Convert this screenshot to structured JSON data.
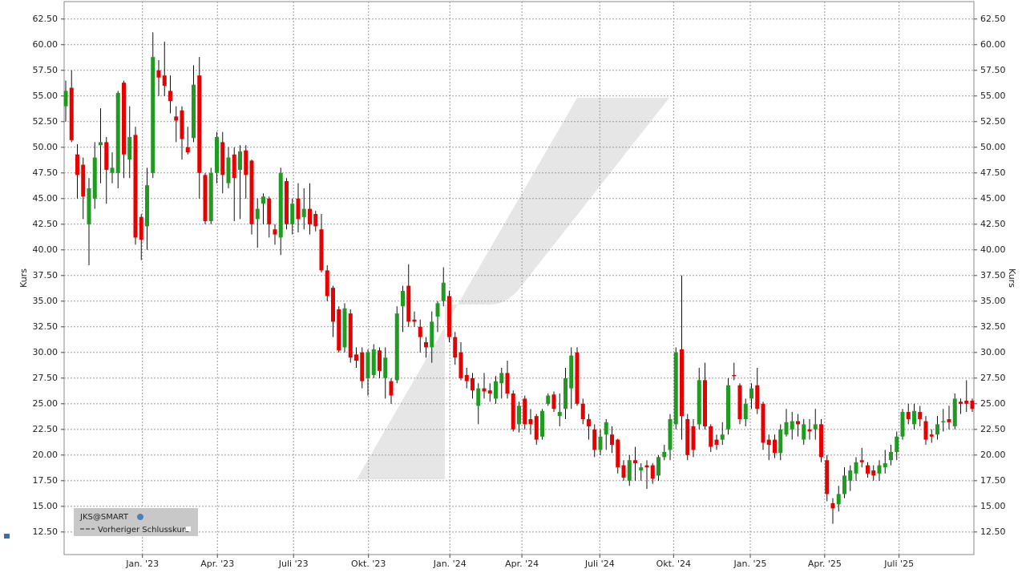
{
  "chart_data": {
    "type": "candlestick",
    "y_label": "Kurs",
    "legend": {
      "symbol": "JKS@SMART",
      "reference": "Vorheriger Schlusskurs"
    },
    "up_color": "#1f9c1f",
    "down_color": "#e60000",
    "ylim": [
      10.3,
      64.2
    ],
    "yticks": [
      {
        "value": 12.5,
        "label": "12.50"
      },
      {
        "value": 15,
        "label": "15.00"
      },
      {
        "value": 17.5,
        "label": "17.50"
      },
      {
        "value": 20,
        "label": "20.00"
      },
      {
        "value": 22.5,
        "label": "22.50"
      },
      {
        "value": 25,
        "label": "25.00"
      },
      {
        "value": 27.5,
        "label": "27.50"
      },
      {
        "value": 30,
        "label": "30.00"
      },
      {
        "value": 32.5,
        "label": "32.50"
      },
      {
        "value": 35,
        "label": "35.00"
      },
      {
        "value": 37.5,
        "label": "37.50"
      },
      {
        "value": 40,
        "label": "40.00"
      },
      {
        "value": 42.5,
        "label": "42.50"
      },
      {
        "value": 45,
        "label": "45.00"
      },
      {
        "value": 47.5,
        "label": "47.50"
      },
      {
        "value": 50,
        "label": "50.00"
      },
      {
        "value": 52.5,
        "label": "52.50"
      },
      {
        "value": 55,
        "label": "55.00"
      },
      {
        "value": 57.5,
        "label": "57.50"
      },
      {
        "value": 60,
        "label": "60.00"
      },
      {
        "value": 62.5,
        "label": "62.50"
      }
    ],
    "xlim": [
      0,
      156
    ],
    "xticks": [
      {
        "value": 13.2,
        "label": "Jan. '23"
      },
      {
        "value": 26.1,
        "label": "Apr. '23"
      },
      {
        "value": 39.2,
        "label": "Juli '23"
      },
      {
        "value": 52.1,
        "label": "Okt. '23"
      },
      {
        "value": 66.1,
        "label": "Jan. '24"
      },
      {
        "value": 78.5,
        "label": "Apr. '24"
      },
      {
        "value": 91.9,
        "label": "Juli '24"
      },
      {
        "value": 104.6,
        "label": "Okt. '24"
      },
      {
        "value": 117.8,
        "label": "Jan. '25"
      },
      {
        "value": 130.6,
        "label": "Apr. '25"
      },
      {
        "value": 143.4,
        "label": "Juli '25"
      }
    ],
    "grid": true,
    "values": [
      [
        54,
        56.5,
        52.5,
        55.5
      ],
      [
        55.8,
        57.5,
        50.5,
        50.7
      ],
      [
        49.3,
        50.3,
        45,
        47.3
      ],
      [
        48.3,
        49,
        43,
        45.2
      ],
      [
        42.5,
        47,
        38.5,
        46
      ],
      [
        45,
        50.5,
        44,
        49
      ],
      [
        50.2,
        53.8,
        46.5,
        50.5
      ],
      [
        50.5,
        51,
        44.5,
        47.8
      ],
      [
        47.5,
        49.5,
        46.5,
        48
      ],
      [
        47.5,
        55.5,
        46,
        55.3
      ],
      [
        56.3,
        56.5,
        47,
        49.3
      ],
      [
        48.8,
        54,
        47,
        51
      ],
      [
        51.2,
        52,
        40.5,
        41.2
      ],
      [
        43.2,
        43.5,
        39,
        41
      ],
      [
        42.3,
        48,
        40,
        46.3
      ],
      [
        47.5,
        61.2,
        47,
        58.8
      ],
      [
        57.5,
        58.5,
        55,
        56.8
      ],
      [
        57,
        60.3,
        55,
        56
      ],
      [
        55.5,
        57,
        53.3,
        54.5
      ],
      [
        53,
        54,
        50.5,
        52.6
      ],
      [
        53.6,
        54,
        48.8,
        50.8
      ],
      [
        50,
        52,
        49.3,
        49.5
      ],
      [
        50.9,
        58,
        50.5,
        56.1
      ],
      [
        57,
        58.8,
        45,
        47.5
      ],
      [
        47.3,
        47.5,
        42.5,
        42.8
      ],
      [
        42.8,
        48,
        42.5,
        47.5
      ],
      [
        47.5,
        51.5,
        46.5,
        51
      ],
      [
        50.5,
        51.5,
        45.5,
        47.3
      ],
      [
        46.5,
        50,
        46,
        49
      ],
      [
        49.3,
        50,
        42.8,
        47
      ],
      [
        47.8,
        50.2,
        43,
        49.6
      ],
      [
        49.7,
        50.2,
        45,
        47.3
      ],
      [
        48.7,
        48.8,
        41.5,
        42.5
      ],
      [
        43,
        45,
        40.2,
        44
      ],
      [
        44.5,
        45.5,
        42.5,
        45.2
      ],
      [
        45,
        45.2,
        41.2,
        42.5
      ],
      [
        42,
        42.5,
        40.5,
        41.5
      ],
      [
        41.2,
        48,
        39.5,
        47.5
      ],
      [
        46.7,
        47,
        42,
        42.5
      ],
      [
        42.5,
        45,
        41.5,
        44.5
      ],
      [
        45,
        46.5,
        41.7,
        43
      ],
      [
        43.2,
        46,
        42,
        44
      ],
      [
        44,
        46.5,
        41.5,
        42.5
      ],
      [
        43.5,
        43.8,
        41.8,
        42.3
      ],
      [
        42,
        43.5,
        37.8,
        38
      ],
      [
        38,
        38.5,
        35,
        35.5
      ],
      [
        36.3,
        36.5,
        31.5,
        33
      ],
      [
        34.2,
        34.5,
        30,
        30.2
      ],
      [
        30.5,
        34.8,
        30,
        34.3
      ],
      [
        33.8,
        34.2,
        29,
        29.5
      ],
      [
        29.8,
        30.5,
        28.5,
        29.2
      ],
      [
        30,
        30.5,
        26.5,
        27.2
      ],
      [
        27.5,
        30.3,
        25.8,
        30
      ],
      [
        27.8,
        30.8,
        27.5,
        30.3
      ],
      [
        30.2,
        30.5,
        27.5,
        28.2
      ],
      [
        27.5,
        30.5,
        25.5,
        29.5
      ],
      [
        27.2,
        27.5,
        25,
        25.8
      ],
      [
        27.3,
        34.5,
        27,
        33.8
      ],
      [
        34.5,
        36.5,
        32,
        36
      ],
      [
        36.5,
        38.6,
        32.5,
        33
      ],
      [
        33.2,
        34,
        32.5,
        33
      ],
      [
        32.5,
        33.2,
        30,
        31.5
      ],
      [
        31,
        31.5,
        29.5,
        30.5
      ],
      [
        30.5,
        34,
        29,
        33
      ],
      [
        33.5,
        35,
        32,
        34.8
      ],
      [
        35,
        38.3,
        34.5,
        36.8
      ],
      [
        35.5,
        36,
        31,
        31.5
      ],
      [
        31.5,
        32,
        28.8,
        29.5
      ],
      [
        30,
        31,
        27.3,
        27.5
      ],
      [
        27.8,
        28.5,
        26.5,
        27.2
      ],
      [
        27.5,
        28,
        25.5,
        26.3
      ],
      [
        24.8,
        27,
        23,
        26.5
      ],
      [
        26.5,
        28,
        25.5,
        26.2
      ],
      [
        26.3,
        27,
        25.2,
        26
      ],
      [
        25.5,
        27.7,
        25,
        27.2
      ],
      [
        27,
        28.5,
        25.5,
        28
      ],
      [
        28,
        29.2,
        25.5,
        26
      ],
      [
        26,
        26.3,
        22.3,
        22.5
      ],
      [
        23,
        25.2,
        22.2,
        24.8
      ],
      [
        25.5,
        25.8,
        22.5,
        23
      ],
      [
        23.5,
        24.5,
        22,
        23
      ],
      [
        23.8,
        24,
        21,
        21.5
      ],
      [
        21.8,
        24.5,
        21.5,
        24.3
      ],
      [
        25,
        26,
        24.8,
        25.8
      ],
      [
        25.9,
        26.2,
        24.2,
        24.5
      ],
      [
        23.8,
        26,
        22.8,
        24.2
      ],
      [
        24.5,
        28.5,
        23.5,
        27.5
      ],
      [
        26.5,
        30.5,
        24.5,
        29.7
      ],
      [
        30,
        30.5,
        24.8,
        25
      ],
      [
        25,
        25.5,
        23,
        23.5
      ],
      [
        23.5,
        24,
        21.5,
        22.8
      ],
      [
        22.5,
        23,
        19.8,
        20.5
      ],
      [
        20.5,
        22.5,
        20,
        21.8
      ],
      [
        22,
        23.5,
        20.5,
        23.2
      ],
      [
        22,
        22.8,
        20.2,
        21
      ],
      [
        21.5,
        21.6,
        18.2,
        18.8
      ],
      [
        19,
        19.5,
        17.5,
        17.8
      ],
      [
        17.5,
        20,
        17,
        19.5
      ],
      [
        19.5,
        20.8,
        17.5,
        19.2
      ],
      [
        18.5,
        19.2,
        17.5,
        18.8
      ],
      [
        19,
        19.5,
        16.7,
        18.8
      ],
      [
        19,
        19.2,
        17.2,
        17.7
      ],
      [
        18,
        20,
        17.5,
        19.8
      ],
      [
        19.8,
        21,
        19.5,
        20.3
      ],
      [
        20.5,
        24,
        19.5,
        23.5
      ],
      [
        23,
        30.5,
        22.5,
        30
      ],
      [
        30.3,
        37.5,
        21.5,
        23.8
      ],
      [
        23.5,
        24,
        19.5,
        20
      ],
      [
        22.8,
        23.5,
        19.8,
        20.5
      ],
      [
        23,
        28.5,
        22.5,
        27.3
      ],
      [
        27.3,
        29,
        22.5,
        22.8
      ],
      [
        22.8,
        23,
        20.3,
        20.8
      ],
      [
        21.5,
        22,
        20.5,
        21
      ],
      [
        21.5,
        23.2,
        21,
        22
      ],
      [
        22.5,
        27.5,
        22,
        26.8
      ],
      [
        27.8,
        29,
        27.3,
        27.7
      ],
      [
        26.8,
        27,
        23,
        23.5
      ],
      [
        23.5,
        25.5,
        22.8,
        25
      ],
      [
        25.5,
        27,
        24.5,
        26.5
      ],
      [
        26.8,
        28.5,
        24,
        24.5
      ],
      [
        25,
        25.2,
        20.5,
        21.2
      ],
      [
        21.5,
        22,
        19.5,
        21
      ],
      [
        21.5,
        22,
        19.7,
        20.2
      ],
      [
        20.2,
        23,
        19.5,
        22.5
      ],
      [
        22,
        24.5,
        21.8,
        23.2
      ],
      [
        22.5,
        24.2,
        21.5,
        23.3
      ],
      [
        23.3,
        24,
        21.8,
        23
      ],
      [
        21.5,
        23.5,
        21,
        23
      ],
      [
        22.5,
        23.5,
        21.5,
        22.3
      ],
      [
        22.5,
        24.5,
        21.5,
        23
      ],
      [
        23,
        23.5,
        19.3,
        19.8
      ],
      [
        19.5,
        20,
        15.5,
        16.2
      ],
      [
        15.3,
        15.8,
        13.3,
        14.8
      ],
      [
        15.2,
        17,
        14.5,
        16.2
      ],
      [
        16.2,
        18.8,
        15.8,
        18
      ],
      [
        17.5,
        19,
        16.5,
        18.5
      ],
      [
        18.2,
        19.8,
        17.5,
        19.3
      ],
      [
        19.5,
        20.7,
        18.8,
        19.3
      ],
      [
        19,
        19.3,
        17.8,
        18.2
      ],
      [
        18.5,
        19,
        17.5,
        18
      ],
      [
        18.2,
        19.5,
        17.5,
        19
      ],
      [
        18.8,
        20.5,
        18.2,
        19.2
      ],
      [
        19.5,
        21,
        19,
        20.3
      ],
      [
        20.3,
        22.3,
        19.5,
        21.8
      ],
      [
        21.8,
        24.5,
        21.5,
        24.2
      ],
      [
        24.2,
        25,
        23,
        23.5
      ],
      [
        23,
        25,
        22.5,
        24.3
      ],
      [
        24.2,
        24.8,
        22.8,
        23.5
      ],
      [
        23.3,
        23.8,
        21,
        21.5
      ],
      [
        22,
        22.5,
        21.2,
        21.8
      ],
      [
        22,
        23.8,
        21.5,
        23
      ],
      [
        23.2,
        24.5,
        22.3,
        23.3
      ],
      [
        23.5,
        24.8,
        22.5,
        23.2
      ],
      [
        22.8,
        26,
        22.5,
        25.5
      ],
      [
        25.2,
        25.5,
        24,
        25
      ],
      [
        25.3,
        27.3,
        24.2,
        25
      ],
      [
        25.3,
        25.5,
        24.2,
        24.5
      ]
    ]
  }
}
